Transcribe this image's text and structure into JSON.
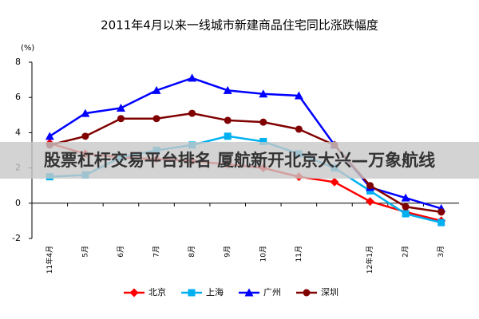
{
  "chart_data": {
    "type": "line",
    "title": "2011年4月以来一线城市新建商品住宅同比涨跌幅度",
    "y_label": "(%)",
    "categories": [
      "11年4月",
      "5月",
      "6月",
      "7月",
      "8月",
      "9月",
      "10月",
      "11月",
      null,
      "12年1月",
      "2月",
      "3月"
    ],
    "series": [
      {
        "name": "北京",
        "color": "#ff0000",
        "marker": "diamond",
        "values": [
          3.4,
          2.8,
          2.6,
          2.5,
          2.4,
          2.2,
          2.0,
          1.5,
          1.2,
          0.1,
          -0.5,
          -1.0
        ]
      },
      {
        "name": "上海",
        "color": "#00b0f0",
        "marker": "square",
        "values": [
          1.5,
          1.6,
          2.6,
          3.0,
          3.3,
          3.8,
          3.5,
          2.8,
          2.0,
          0.7,
          -0.6,
          -1.1
        ]
      },
      {
        "name": "广州",
        "color": "#0000ff",
        "marker": "triangle",
        "values": [
          3.8,
          5.1,
          5.4,
          6.4,
          7.1,
          6.4,
          6.2,
          6.1,
          3.3,
          0.9,
          0.3,
          -0.3
        ]
      },
      {
        "name": "深圳",
        "color": "#800000",
        "marker": "circle",
        "values": [
          3.3,
          3.8,
          4.8,
          4.8,
          5.1,
          4.7,
          4.6,
          4.2,
          3.3,
          1.0,
          -0.2,
          -0.5
        ]
      }
    ],
    "ylim": [
      -2,
      8
    ],
    "yticks": [
      -2,
      0,
      2,
      4,
      6,
      8
    ],
    "grid": false,
    "legend": "bottom"
  },
  "banner": "股票杠杆交易平台排名 厦航新开北京大兴—万象航线"
}
